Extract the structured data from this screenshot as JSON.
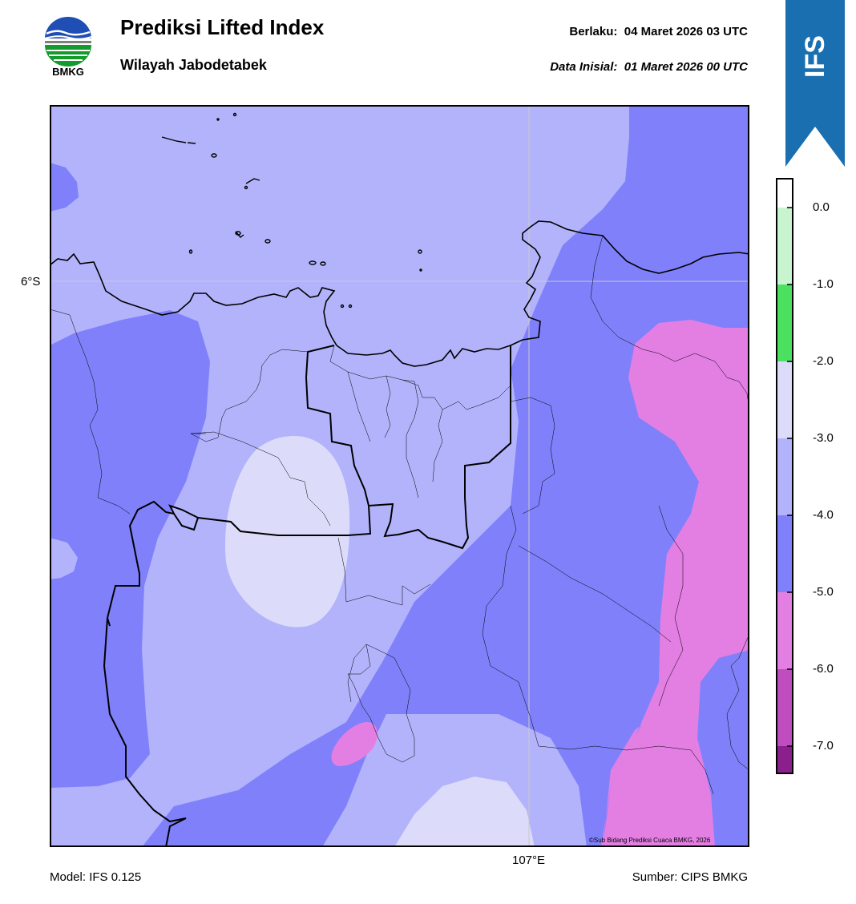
{
  "header": {
    "logo_text": "BMKG",
    "title": "Prediksi Lifted Index",
    "subtitle": "Wilayah Jabodetabek",
    "valid_label": "Berlaku:",
    "valid_value": "04 Maret 2026 03 UTC",
    "init_label": "Data Inisial:",
    "init_value": "01 Maret 2026 00 UTC",
    "ribbon_text": "IFS"
  },
  "map": {
    "lat_label": "6°S",
    "lon_label": "107°E",
    "copyright": "©Sub Bidang Prediksi Cuaca BMKG, 2026"
  },
  "colorbar": {
    "ticks": [
      "0.0",
      "-1.0",
      "-2.0",
      "-3.0",
      "-4.0",
      "-5.0",
      "-6.0",
      "-7.0"
    ],
    "colors": [
      "#ffffff",
      "#c8f5cf",
      "#4be060",
      "#dcdcfa",
      "#b3b3fc",
      "#8080fb",
      "#e37fe3",
      "#c04dc0",
      "#8b1f8b"
    ]
  },
  "footer": {
    "model": "Model: IFS 0.125",
    "source": "Sumber: CIPS BMKG"
  }
}
